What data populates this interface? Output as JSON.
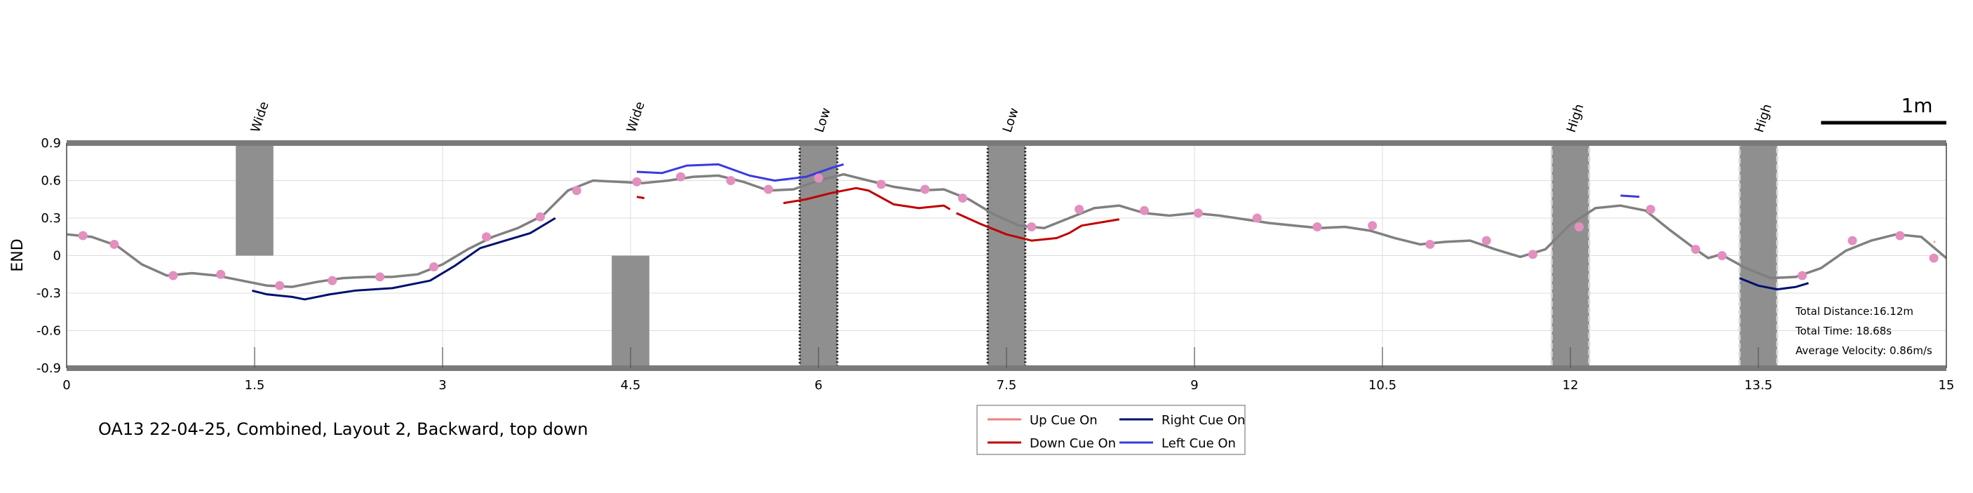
{
  "chart_data": {
    "type": "line",
    "title": "OA13 22-04-25, Combined, Layout 2, Backward, top down",
    "xlabel": "",
    "ylabel": "END",
    "xlim": [
      0,
      15
    ],
    "ylim": [
      -0.9,
      0.9
    ],
    "xticks": [
      0,
      1.5,
      3,
      4.5,
      6,
      7.5,
      9,
      10.5,
      12,
      13.5,
      15
    ],
    "xtick_labels": [
      "0",
      "1.5",
      "3",
      "4.5",
      "6",
      "7.5",
      "9",
      "10.5",
      "12",
      "13.5",
      "15"
    ],
    "yticks": [
      0.9,
      0.6,
      0.3,
      0,
      -0.3,
      -0.6,
      -0.9
    ],
    "ytick_labels": [
      "0.9",
      "0.6",
      "0.3",
      "0",
      "-0.3",
      "-0.6",
      "-0.9"
    ],
    "grid": true,
    "obstacles": [
      {
        "label": "Wide",
        "x0": 1.35,
        "x1": 1.65,
        "y0": 0.0,
        "y1": 0.9,
        "style": "solid"
      },
      {
        "label": "Wide",
        "x0": 4.35,
        "x1": 4.65,
        "y0": -0.9,
        "y1": 0.0,
        "style": "solid"
      },
      {
        "label": "Low",
        "x0": 5.85,
        "x1": 6.15,
        "y0": -0.9,
        "y1": 0.9,
        "style": "dotted-dark"
      },
      {
        "label": "Low",
        "x0": 7.35,
        "x1": 7.65,
        "y0": -0.9,
        "y1": 0.9,
        "style": "dotted-dark"
      },
      {
        "label": "High",
        "x0": 11.85,
        "x1": 12.15,
        "y0": -0.9,
        "y1": 0.9,
        "style": "dashed-light"
      },
      {
        "label": "High",
        "x0": 13.35,
        "x1": 13.65,
        "y0": -0.9,
        "y1": 0.9,
        "style": "dashed-light"
      }
    ],
    "trajectory": {
      "name": "",
      "color": "#808080",
      "x": [
        0,
        0.2,
        0.4,
        0.6,
        0.8,
        1.0,
        1.2,
        1.4,
        1.6,
        1.8,
        2.0,
        2.2,
        2.4,
        2.6,
        2.8,
        3.0,
        3.2,
        3.4,
        3.6,
        3.8,
        4.0,
        4.2,
        4.4,
        4.6,
        4.8,
        5.0,
        5.2,
        5.4,
        5.6,
        5.8,
        6.0,
        6.2,
        6.4,
        6.6,
        6.8,
        7.0,
        7.2,
        7.4,
        7.6,
        7.8,
        8.0,
        8.2,
        8.4,
        8.6,
        8.8,
        9.0,
        9.2,
        9.4,
        9.6,
        9.8,
        10.0,
        10.2,
        10.4,
        10.6,
        10.8,
        11.0,
        11.2,
        11.4,
        11.6,
        11.8,
        12.0,
        12.2,
        12.4,
        12.6,
        12.8,
        13.0,
        13.1,
        13.2,
        13.4,
        13.6,
        13.8,
        14.0,
        14.2,
        14.4,
        14.6,
        14.8,
        15.0
      ],
      "y": [
        0.17,
        0.15,
        0.08,
        -0.07,
        -0.16,
        -0.14,
        -0.16,
        -0.2,
        -0.24,
        -0.25,
        -0.21,
        -0.18,
        -0.17,
        -0.17,
        -0.15,
        -0.07,
        0.05,
        0.15,
        0.22,
        0.32,
        0.52,
        0.6,
        0.59,
        0.58,
        0.6,
        0.63,
        0.64,
        0.59,
        0.52,
        0.53,
        0.6,
        0.65,
        0.6,
        0.55,
        0.52,
        0.53,
        0.45,
        0.33,
        0.24,
        0.22,
        0.3,
        0.38,
        0.4,
        0.34,
        0.32,
        0.34,
        0.32,
        0.29,
        0.26,
        0.24,
        0.22,
        0.23,
        0.2,
        0.14,
        0.09,
        0.11,
        0.12,
        0.05,
        -0.01,
        0.05,
        0.25,
        0.38,
        0.4,
        0.36,
        0.2,
        0.05,
        -0.02,
        0.01,
        -0.1,
        -0.18,
        -0.17,
        -0.1,
        0.04,
        0.12,
        0.17,
        0.15,
        -0.02
      ]
    },
    "markers": {
      "color": "#e38fbf",
      "x": [
        0.13,
        0.38,
        0.85,
        1.23,
        1.7,
        2.12,
        2.5,
        2.93,
        3.35,
        3.78,
        4.07,
        4.55,
        4.9,
        5.3,
        5.6,
        6.0,
        6.5,
        6.85,
        7.15,
        7.7,
        8.08,
        8.6,
        9.03,
        9.5,
        9.98,
        10.42,
        10.88,
        11.33,
        11.7,
        12.07,
        12.64,
        13.0,
        13.21,
        13.85,
        14.25,
        14.63,
        14.9
      ],
      "y": [
        0.16,
        0.09,
        -0.16,
        -0.15,
        -0.24,
        -0.2,
        -0.17,
        -0.09,
        0.15,
        0.31,
        0.52,
        0.59,
        0.63,
        0.6,
        0.53,
        0.62,
        0.57,
        0.53,
        0.46,
        0.23,
        0.37,
        0.36,
        0.34,
        0.3,
        0.23,
        0.24,
        0.09,
        0.12,
        0.01,
        0.23,
        0.37,
        0.05,
        0.0,
        -0.16,
        0.12,
        0.16,
        -0.02
      ]
    },
    "series": [
      {
        "name": "Up Cue On",
        "color": "#f08080",
        "segments": [
          {
            "x": [
              14.9,
              14.91
            ],
            "y": [
              0.11,
              0.11
            ]
          }
        ]
      },
      {
        "name": "Down Cue On",
        "color": "#c00000",
        "segments": [
          {
            "x": [
              4.55,
              4.61
            ],
            "y": [
              0.47,
              0.46
            ]
          },
          {
            "x": [
              5.72,
              5.9,
              6.1,
              6.3,
              6.4,
              6.6,
              6.8,
              7.0,
              7.05
            ],
            "y": [
              0.42,
              0.45,
              0.5,
              0.54,
              0.52,
              0.41,
              0.38,
              0.4,
              0.37
            ]
          },
          {
            "x": [
              7.1,
              7.3,
              7.5,
              7.7,
              7.9,
              8.0,
              8.1,
              8.4
            ],
            "y": [
              0.34,
              0.25,
              0.17,
              0.12,
              0.14,
              0.18,
              0.24,
              0.29
            ]
          }
        ]
      },
      {
        "name": "Right Cue On",
        "color": "#00106e",
        "segments": [
          {
            "x": [
              1.48,
              1.6,
              1.8,
              1.9,
              2.1,
              2.3,
              2.6,
              2.9,
              3.1,
              3.3,
              3.5,
              3.7,
              3.9
            ],
            "y": [
              -0.28,
              -0.31,
              -0.33,
              -0.35,
              -0.31,
              -0.28,
              -0.26,
              -0.2,
              -0.08,
              0.06,
              0.12,
              0.18,
              0.3
            ]
          },
          {
            "x": [
              13.35,
              13.5,
              13.65,
              13.8,
              13.9
            ],
            "y": [
              -0.18,
              -0.24,
              -0.27,
              -0.25,
              -0.22
            ]
          }
        ]
      },
      {
        "name": "Left Cue On",
        "color": "#3a3ae0",
        "segments": [
          {
            "x": [
              4.55,
              4.75,
              4.95,
              5.2,
              5.45,
              5.65,
              5.9,
              6.1,
              6.2
            ],
            "y": [
              0.67,
              0.66,
              0.72,
              0.73,
              0.64,
              0.6,
              0.63,
              0.7,
              0.73
            ]
          },
          {
            "x": [
              12.4,
              12.55
            ],
            "y": [
              0.48,
              0.47
            ]
          }
        ]
      }
    ],
    "legend": {
      "position": "bottom-center",
      "entries": [
        "Up Cue On",
        "Right Cue On",
        "Down Cue On",
        "Left Cue On"
      ]
    },
    "scale_bar": {
      "label": "1m",
      "length_data": 1.0
    },
    "stats": {
      "total_distance": "Total Distance:16.12m",
      "total_time": "Total Time: 18.68s",
      "average_velocity": "Average Velocity: 0.86m/s"
    }
  }
}
